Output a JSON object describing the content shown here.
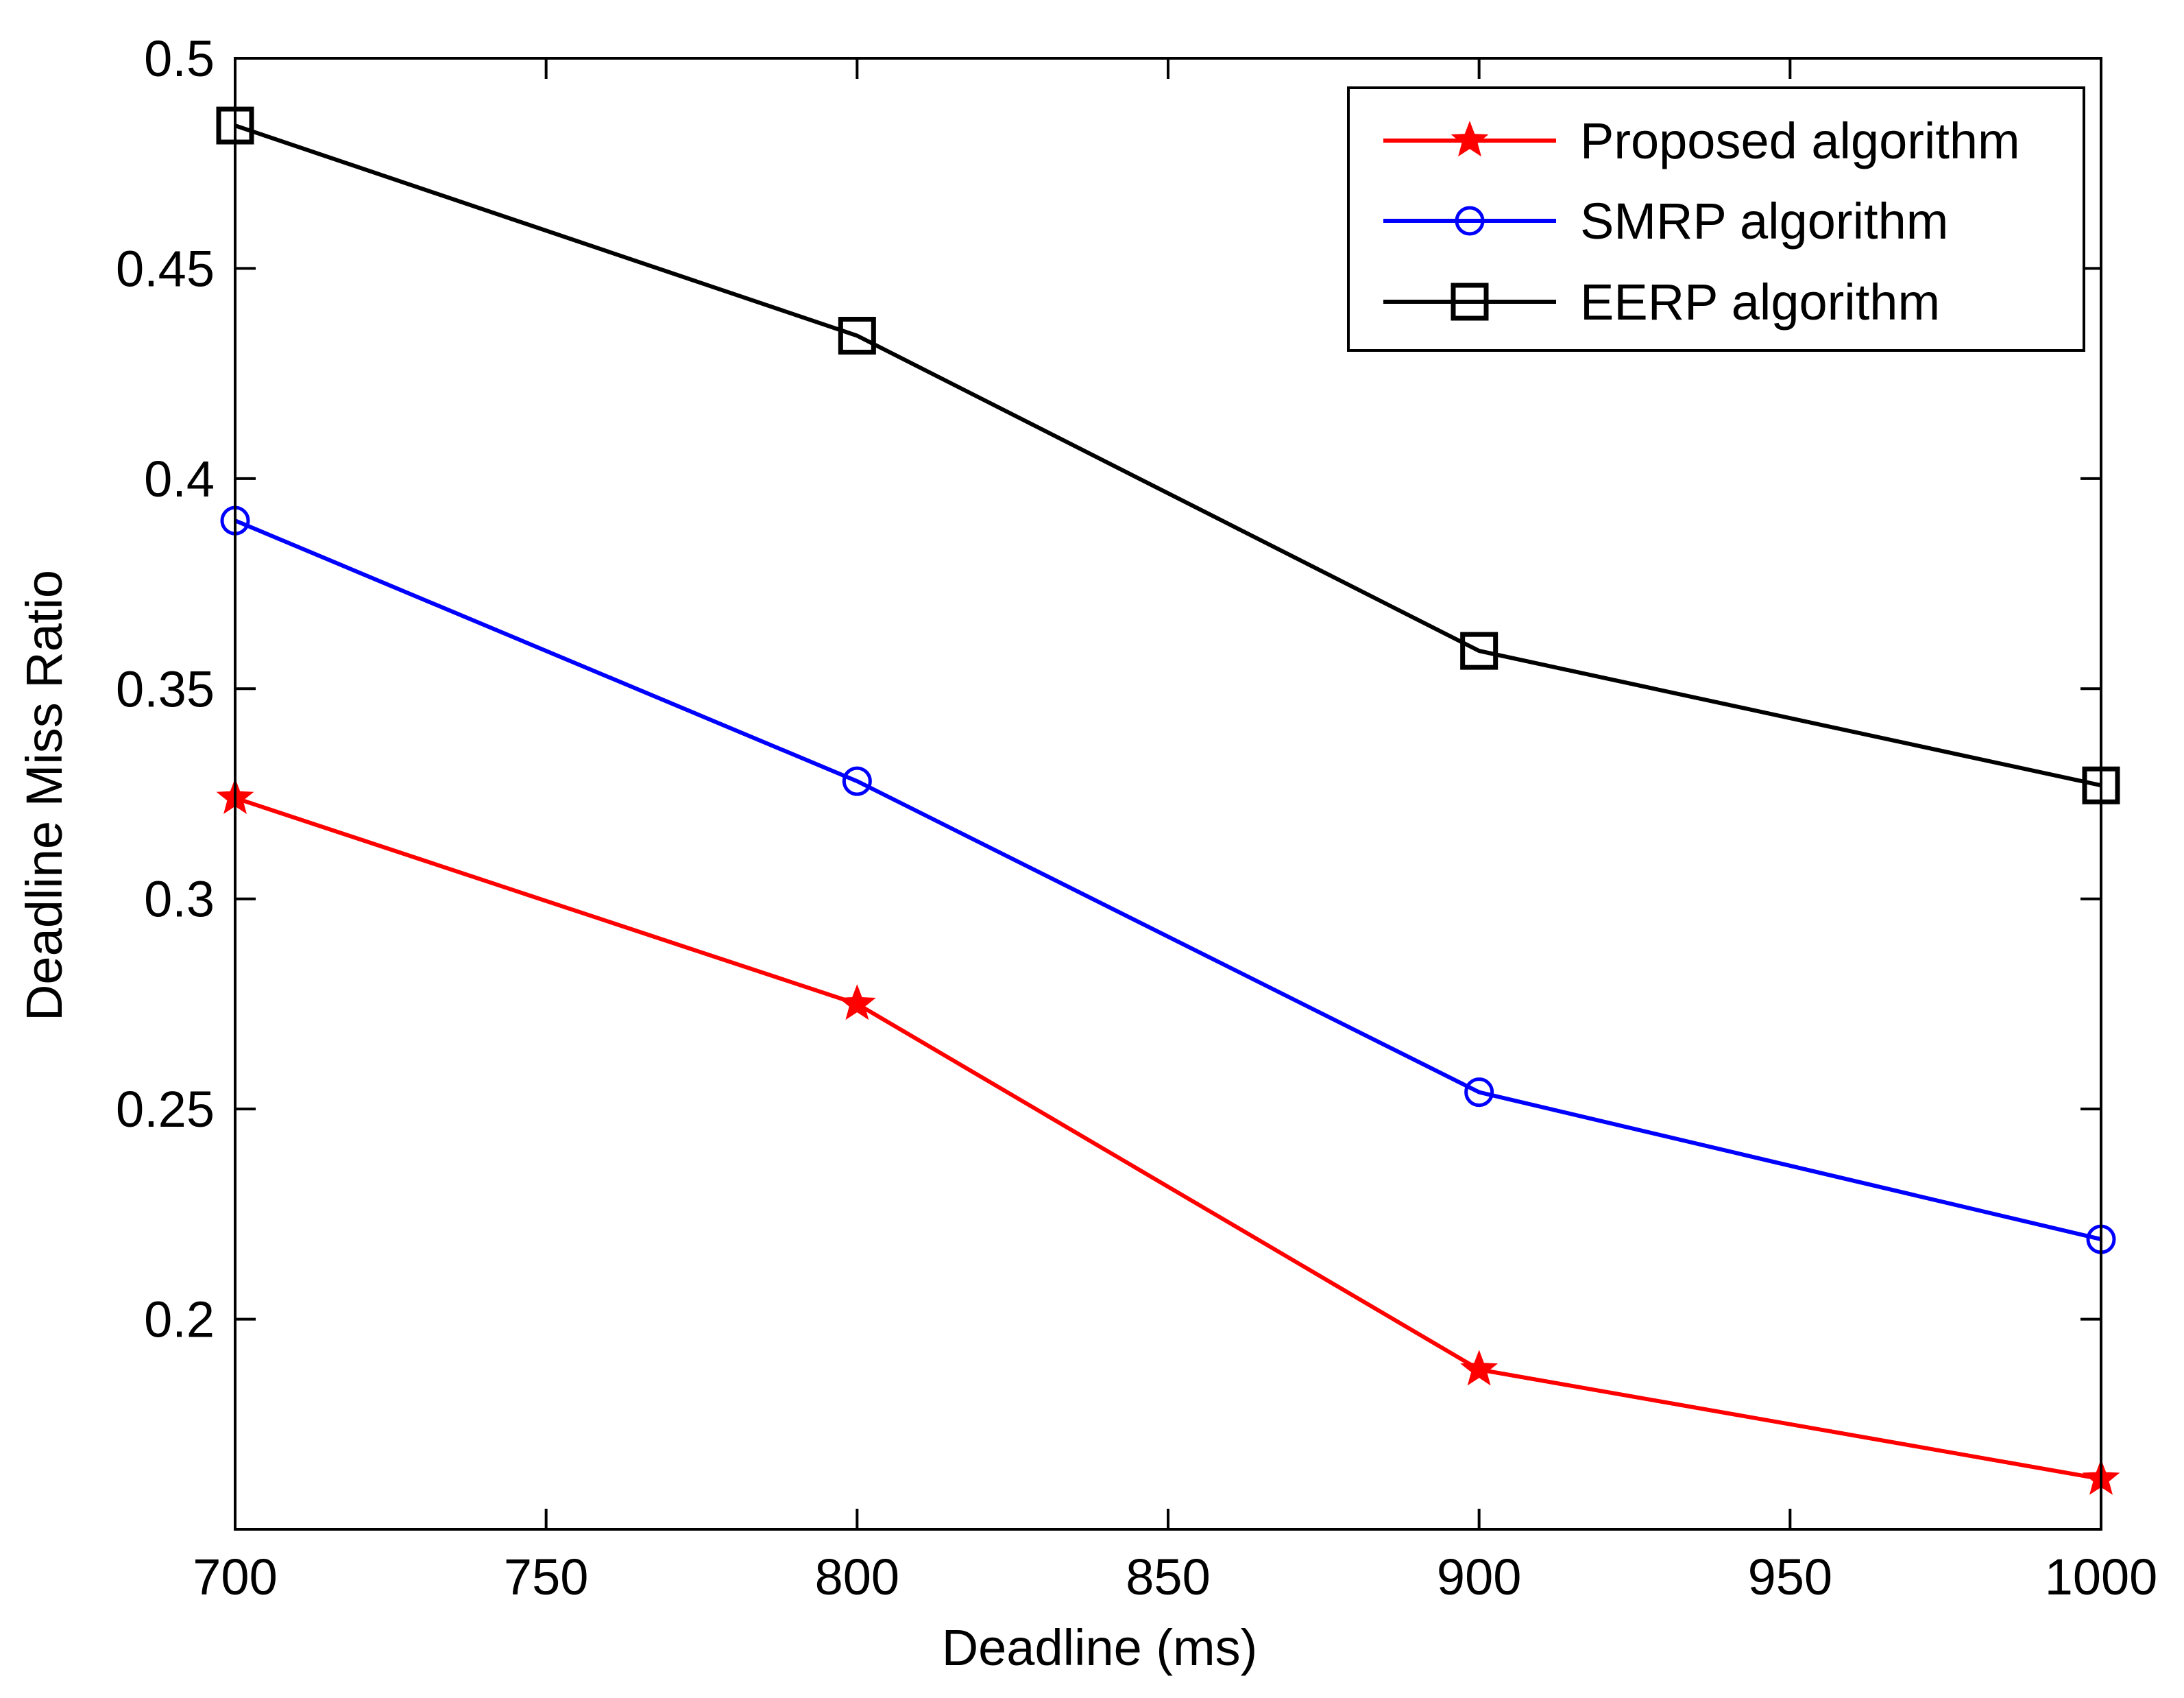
{
  "chart_data": {
    "type": "line",
    "title": "",
    "xlabel": "Deadline (ms)",
    "ylabel": "Deadline Miss Ratio",
    "xlim": [
      700,
      1000
    ],
    "ylim": [
      0.15,
      0.5
    ],
    "xticks": [
      700,
      750,
      800,
      850,
      900,
      950,
      1000
    ],
    "xtick_labels": [
      "700",
      "750",
      "800",
      "850",
      "900",
      "950",
      "1000"
    ],
    "yticks": [
      0.2,
      0.25,
      0.3,
      0.35,
      0.4,
      0.45,
      0.5
    ],
    "ytick_labels": [
      "0.2",
      "0.25",
      "0.3",
      "0.35",
      "0.4",
      "0.45",
      "0.5"
    ],
    "grid": false,
    "legend_position": "top-right",
    "x": [
      700,
      800,
      900,
      1000
    ],
    "series": [
      {
        "name": "Proposed algorithm",
        "color": "#ff0000",
        "marker": "star",
        "values": [
          0.324,
          0.275,
          0.188,
          0.162
        ]
      },
      {
        "name": "SMRP algorithm",
        "color": "#0000ff",
        "marker": "circle",
        "values": [
          0.39,
          0.328,
          0.254,
          0.219
        ]
      },
      {
        "name": "EERP algorithm",
        "color": "#000000",
        "marker": "square",
        "values": [
          0.484,
          0.434,
          0.359,
          0.327
        ]
      }
    ]
  }
}
